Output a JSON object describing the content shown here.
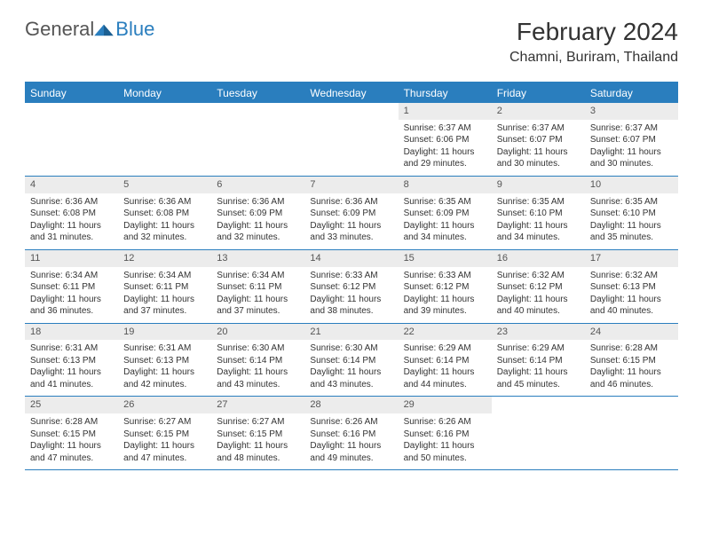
{
  "brand": {
    "text1": "General",
    "text2": "Blue"
  },
  "title": "February 2024",
  "location": "Chamni, Buriram, Thailand",
  "colors": {
    "accent": "#2a7ebe",
    "header_bg": "#2a7ebe",
    "date_bg": "#ececec",
    "text": "#333333",
    "bg": "#ffffff"
  },
  "day_headers": [
    "Sunday",
    "Monday",
    "Tuesday",
    "Wednesday",
    "Thursday",
    "Friday",
    "Saturday"
  ],
  "weeks": [
    [
      null,
      null,
      null,
      null,
      {
        "d": "1",
        "sr": "Sunrise: 6:37 AM",
        "ss": "Sunset: 6:06 PM",
        "dl1": "Daylight: 11 hours",
        "dl2": "and 29 minutes."
      },
      {
        "d": "2",
        "sr": "Sunrise: 6:37 AM",
        "ss": "Sunset: 6:07 PM",
        "dl1": "Daylight: 11 hours",
        "dl2": "and 30 minutes."
      },
      {
        "d": "3",
        "sr": "Sunrise: 6:37 AM",
        "ss": "Sunset: 6:07 PM",
        "dl1": "Daylight: 11 hours",
        "dl2": "and 30 minutes."
      }
    ],
    [
      {
        "d": "4",
        "sr": "Sunrise: 6:36 AM",
        "ss": "Sunset: 6:08 PM",
        "dl1": "Daylight: 11 hours",
        "dl2": "and 31 minutes."
      },
      {
        "d": "5",
        "sr": "Sunrise: 6:36 AM",
        "ss": "Sunset: 6:08 PM",
        "dl1": "Daylight: 11 hours",
        "dl2": "and 32 minutes."
      },
      {
        "d": "6",
        "sr": "Sunrise: 6:36 AM",
        "ss": "Sunset: 6:09 PM",
        "dl1": "Daylight: 11 hours",
        "dl2": "and 32 minutes."
      },
      {
        "d": "7",
        "sr": "Sunrise: 6:36 AM",
        "ss": "Sunset: 6:09 PM",
        "dl1": "Daylight: 11 hours",
        "dl2": "and 33 minutes."
      },
      {
        "d": "8",
        "sr": "Sunrise: 6:35 AM",
        "ss": "Sunset: 6:09 PM",
        "dl1": "Daylight: 11 hours",
        "dl2": "and 34 minutes."
      },
      {
        "d": "9",
        "sr": "Sunrise: 6:35 AM",
        "ss": "Sunset: 6:10 PM",
        "dl1": "Daylight: 11 hours",
        "dl2": "and 34 minutes."
      },
      {
        "d": "10",
        "sr": "Sunrise: 6:35 AM",
        "ss": "Sunset: 6:10 PM",
        "dl1": "Daylight: 11 hours",
        "dl2": "and 35 minutes."
      }
    ],
    [
      {
        "d": "11",
        "sr": "Sunrise: 6:34 AM",
        "ss": "Sunset: 6:11 PM",
        "dl1": "Daylight: 11 hours",
        "dl2": "and 36 minutes."
      },
      {
        "d": "12",
        "sr": "Sunrise: 6:34 AM",
        "ss": "Sunset: 6:11 PM",
        "dl1": "Daylight: 11 hours",
        "dl2": "and 37 minutes."
      },
      {
        "d": "13",
        "sr": "Sunrise: 6:34 AM",
        "ss": "Sunset: 6:11 PM",
        "dl1": "Daylight: 11 hours",
        "dl2": "and 37 minutes."
      },
      {
        "d": "14",
        "sr": "Sunrise: 6:33 AM",
        "ss": "Sunset: 6:12 PM",
        "dl1": "Daylight: 11 hours",
        "dl2": "and 38 minutes."
      },
      {
        "d": "15",
        "sr": "Sunrise: 6:33 AM",
        "ss": "Sunset: 6:12 PM",
        "dl1": "Daylight: 11 hours",
        "dl2": "and 39 minutes."
      },
      {
        "d": "16",
        "sr": "Sunrise: 6:32 AM",
        "ss": "Sunset: 6:12 PM",
        "dl1": "Daylight: 11 hours",
        "dl2": "and 40 minutes."
      },
      {
        "d": "17",
        "sr": "Sunrise: 6:32 AM",
        "ss": "Sunset: 6:13 PM",
        "dl1": "Daylight: 11 hours",
        "dl2": "and 40 minutes."
      }
    ],
    [
      {
        "d": "18",
        "sr": "Sunrise: 6:31 AM",
        "ss": "Sunset: 6:13 PM",
        "dl1": "Daylight: 11 hours",
        "dl2": "and 41 minutes."
      },
      {
        "d": "19",
        "sr": "Sunrise: 6:31 AM",
        "ss": "Sunset: 6:13 PM",
        "dl1": "Daylight: 11 hours",
        "dl2": "and 42 minutes."
      },
      {
        "d": "20",
        "sr": "Sunrise: 6:30 AM",
        "ss": "Sunset: 6:14 PM",
        "dl1": "Daylight: 11 hours",
        "dl2": "and 43 minutes."
      },
      {
        "d": "21",
        "sr": "Sunrise: 6:30 AM",
        "ss": "Sunset: 6:14 PM",
        "dl1": "Daylight: 11 hours",
        "dl2": "and 43 minutes."
      },
      {
        "d": "22",
        "sr": "Sunrise: 6:29 AM",
        "ss": "Sunset: 6:14 PM",
        "dl1": "Daylight: 11 hours",
        "dl2": "and 44 minutes."
      },
      {
        "d": "23",
        "sr": "Sunrise: 6:29 AM",
        "ss": "Sunset: 6:14 PM",
        "dl1": "Daylight: 11 hours",
        "dl2": "and 45 minutes."
      },
      {
        "d": "24",
        "sr": "Sunrise: 6:28 AM",
        "ss": "Sunset: 6:15 PM",
        "dl1": "Daylight: 11 hours",
        "dl2": "and 46 minutes."
      }
    ],
    [
      {
        "d": "25",
        "sr": "Sunrise: 6:28 AM",
        "ss": "Sunset: 6:15 PM",
        "dl1": "Daylight: 11 hours",
        "dl2": "and 47 minutes."
      },
      {
        "d": "26",
        "sr": "Sunrise: 6:27 AM",
        "ss": "Sunset: 6:15 PM",
        "dl1": "Daylight: 11 hours",
        "dl2": "and 47 minutes."
      },
      {
        "d": "27",
        "sr": "Sunrise: 6:27 AM",
        "ss": "Sunset: 6:15 PM",
        "dl1": "Daylight: 11 hours",
        "dl2": "and 48 minutes."
      },
      {
        "d": "28",
        "sr": "Sunrise: 6:26 AM",
        "ss": "Sunset: 6:16 PM",
        "dl1": "Daylight: 11 hours",
        "dl2": "and 49 minutes."
      },
      {
        "d": "29",
        "sr": "Sunrise: 6:26 AM",
        "ss": "Sunset: 6:16 PM",
        "dl1": "Daylight: 11 hours",
        "dl2": "and 50 minutes."
      },
      null,
      null
    ]
  ]
}
